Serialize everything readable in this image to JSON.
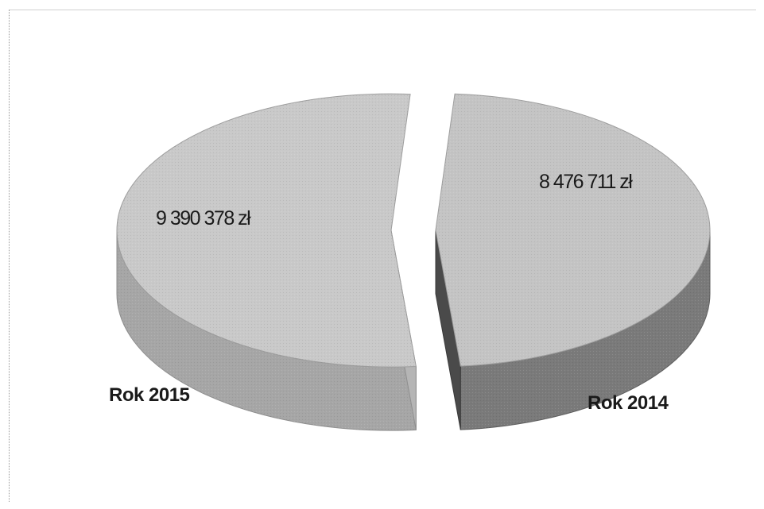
{
  "chart_data": {
    "type": "pie",
    "title": "",
    "categories": [
      "Rok 2015",
      "Rok 2014"
    ],
    "values": [
      9390378,
      8476711
    ],
    "value_labels": [
      "9 390 378 zł",
      "8 476 711 zł"
    ],
    "exploded": true,
    "three_d": true,
    "legend": "none",
    "colors": {
      "rok_2015_top": "#c9c9c9",
      "rok_2015_side": "#a6a6a6",
      "rok_2014_top": "#c4c4c4",
      "rok_2014_side": "#7a7a7a",
      "rok_2014_cut": "#4a4a4a"
    }
  }
}
